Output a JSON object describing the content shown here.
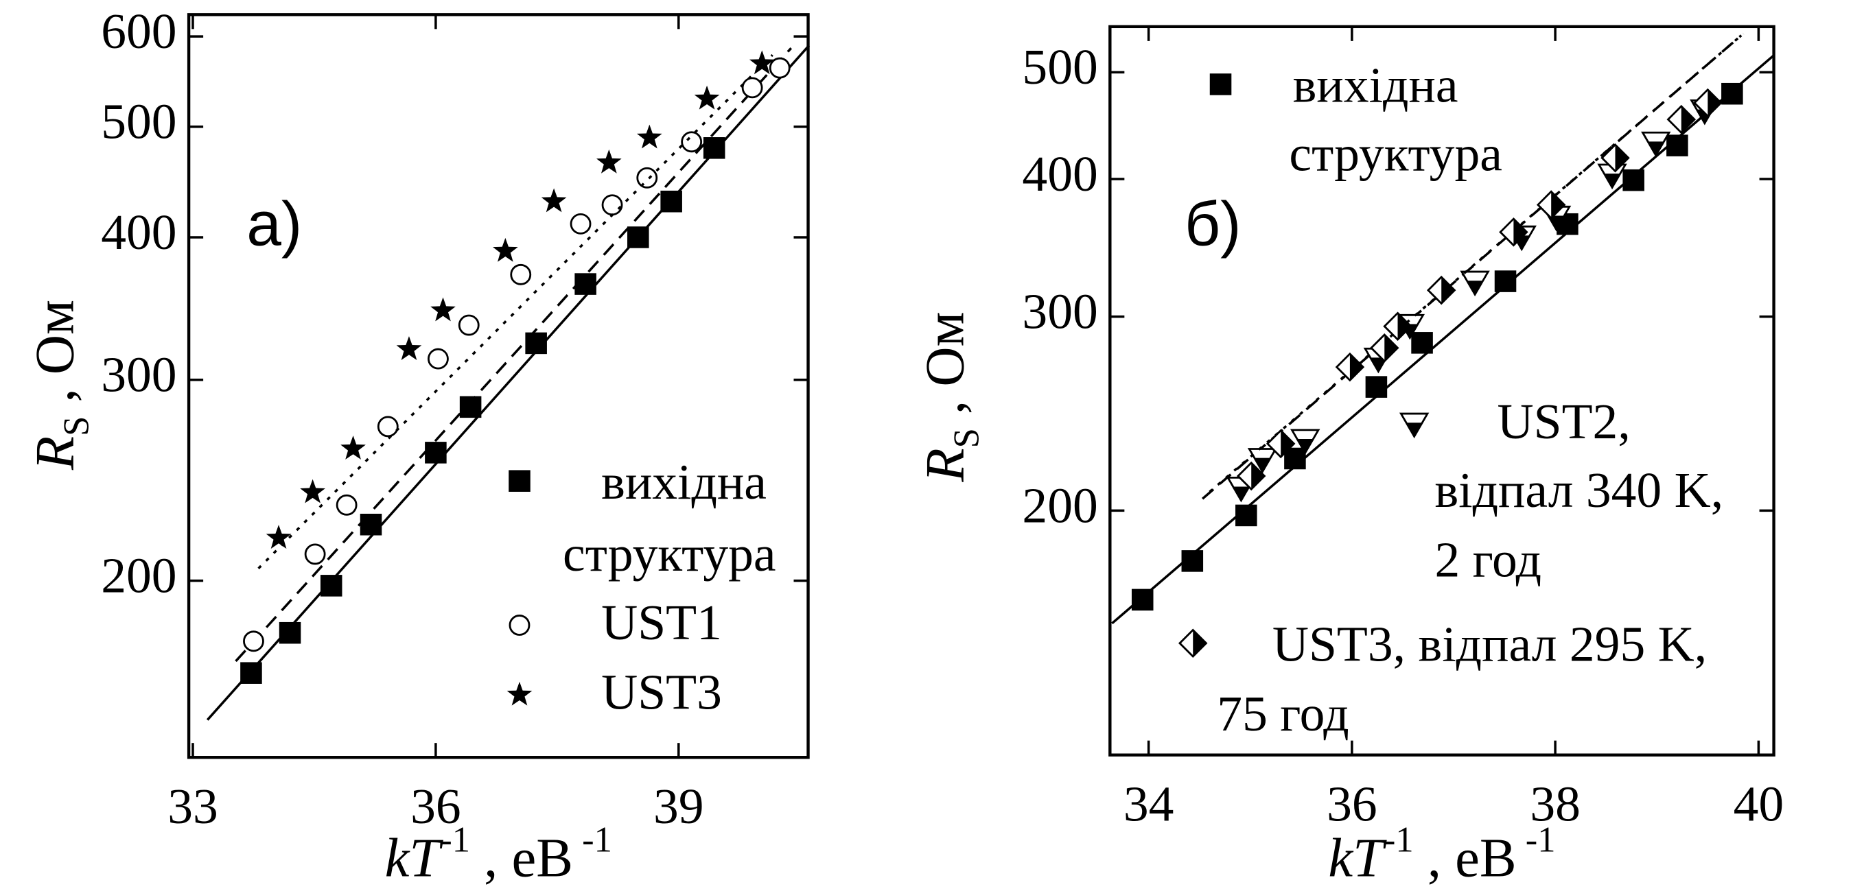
{
  "chart_data": [
    {
      "type": "scatter",
      "panel_label": "а)",
      "log_y": true,
      "xlabel": [
        "kT",
        "-1",
        " ,  eB",
        " -1"
      ],
      "ylabel": [
        "R",
        "S",
        " ,  Ом"
      ],
      "xlim": [
        32.95,
        40.6
      ],
      "ylim": [
        140,
        627
      ],
      "xticks": [
        33,
        36,
        39
      ],
      "yticks": [
        200,
        300,
        400,
        500,
        600
      ],
      "series": [
        {
          "name": [
            "вихідна",
            "структура"
          ],
          "color": "#000000",
          "marker": "square",
          "line": "solid",
          "x": [
            33.72,
            34.2,
            34.71,
            35.2,
            36.0,
            36.43,
            37.24,
            37.85,
            38.5,
            38.91,
            39.44
          ],
          "values": [
            166,
            180,
            198,
            224,
            259,
            284,
            323,
            364,
            400,
            430,
            479
          ],
          "fit": {
            "x": [
              33.18,
              40.61
            ],
            "values": [
              151,
              589
            ]
          }
        },
        {
          "name": [
            "UST1"
          ],
          "color": "#000000",
          "marker": "circle",
          "line": "dashed",
          "x": [
            33.75,
            34.51,
            34.9,
            35.41,
            36.03,
            36.41,
            37.05,
            37.79,
            38.18,
            38.61,
            39.16,
            39.91,
            40.25
          ],
          "values": [
            177,
            211,
            233,
            273,
            313,
            335,
            371,
            411,
            427,
            451,
            485,
            541,
            563
          ],
          "fit": {
            "x": [
              33.53,
              40.39
            ],
            "values": [
              170,
              586
            ]
          }
        },
        {
          "name": [
            "UST3"
          ],
          "color": "#000000",
          "marker": "star",
          "line": "dotted",
          "x": [
            34.06,
            34.48,
            34.98,
            35.67,
            36.09,
            36.86,
            37.46,
            38.14,
            38.64,
            39.35,
            40.03
          ],
          "values": [
            218,
            239,
            261,
            319,
            345,
            389,
            430,
            465,
            489,
            529,
            568
          ],
          "fit": {
            "x": [
              33.81,
              40.16
            ],
            "values": [
              205,
              578
            ]
          }
        }
      ]
    },
    {
      "type": "scatter",
      "panel_label": "б)",
      "log_y": true,
      "xlabel": [
        "kT",
        "-1",
        " ,  eB",
        " -1"
      ],
      "ylabel": [
        "R",
        "S",
        " ,  Ом"
      ],
      "xlim": [
        33.62,
        40.15
      ],
      "ylim": [
        120,
        550
      ],
      "xticks": [
        34,
        36,
        38,
        40
      ],
      "yticks": [
        200,
        300,
        400,
        500
      ],
      "series": [
        {
          "name": [
            "вихідна",
            "структура"
          ],
          "color": "#000000",
          "marker": "square",
          "line": "solid",
          "x": [
            33.94,
            34.43,
            34.96,
            35.44,
            36.24,
            36.69,
            37.51,
            38.12,
            38.77,
            39.2,
            39.74
          ],
          "values": [
            166,
            180,
            198,
            223,
            259,
            284,
            323,
            364,
            399,
            429,
            478
          ],
          "fit": {
            "x": [
              33.64,
              40.15
            ],
            "values": [
              158,
              518
            ]
          }
        },
        {
          "name": [
            "UST2,",
            "відпал 340 K,",
            "2 год"
          ],
          "color": "#000000",
          "marker": "triangle-down",
          "line": "dashed",
          "x": [
            34.91,
            35.12,
            35.54,
            36.26,
            36.57,
            37.21,
            37.67,
            38.01,
            38.56,
            38.99,
            39.47
          ],
          "values": [
            210,
            223,
            232,
            275,
            295,
            323,
            355,
            370,
            404,
            432,
            462
          ],
          "fit": {
            "x": [
              34.53,
              39.83
            ],
            "values": [
              205,
              540
            ]
          }
        },
        {
          "name": [
            "UST3, відпал 295 K,",
            "75 год"
          ],
          "color": "#000000",
          "marker": "diamond",
          "line": "dotted",
          "x": [
            35.01,
            35.3,
            35.98,
            36.32,
            36.45,
            36.88,
            37.59,
            37.96,
            38.59,
            39.24,
            39.5
          ],
          "values": [
            215,
            230,
            270,
            281,
            294,
            317,
            358,
            379,
            418,
            453,
            469
          ],
          "fit": {
            "x": [
              34.6,
              39.85
            ],
            "values": [
              208,
              542
            ]
          }
        }
      ]
    }
  ]
}
